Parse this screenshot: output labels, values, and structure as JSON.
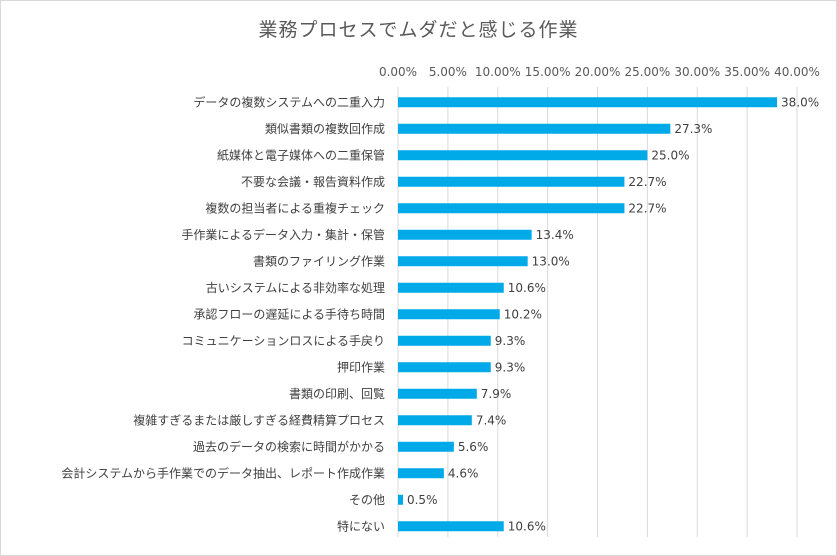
{
  "chart_data": {
    "type": "bar",
    "orientation": "horizontal",
    "title": "業務プロセスでムダだと感じる作業",
    "xlabel": "",
    "ylabel": "",
    "xlim": [
      0,
      40
    ],
    "x_ticks": [
      "0.00%",
      "5.00%",
      "10.00%",
      "15.00%",
      "20.00%",
      "25.00%",
      "30.00%",
      "35.00%",
      "40.00%"
    ],
    "x_axis_position": "top",
    "grid": true,
    "legend": "none",
    "bar_color": "#00a9e8",
    "categories": [
      "データの複数システムへの二重入力",
      "類似書類の複数回作成",
      "紙媒体と電子媒体への二重保管",
      "不要な会議・報告資料作成",
      "複数の担当者による重複チェック",
      "手作業によるデータ入力・集計・保管",
      "書類のファイリング作業",
      "古いシステムによる非効率な処理",
      "承認フローの遅延による手待ち時間",
      "コミュニケーションロスによる手戻り",
      "押印作業",
      "書類の印刷、回覧",
      "複雑すぎるまたは厳しすぎる経費精算プロセス",
      "過去のデータの検索に時間がかかる",
      "会計システムから手作業でのデータ抽出、レポート作成作業",
      "その他",
      "特にない"
    ],
    "values": [
      38.0,
      27.3,
      25.0,
      22.7,
      22.7,
      13.4,
      13.0,
      10.6,
      10.2,
      9.3,
      9.3,
      7.9,
      7.4,
      5.6,
      4.6,
      0.5,
      10.6
    ],
    "data_labels": [
      "38.0%",
      "27.3%",
      "25.0%",
      "22.7%",
      "22.7%",
      "13.4%",
      "13.0%",
      "10.6%",
      "10.2%",
      "9.3%",
      "9.3%",
      "7.9%",
      "7.4%",
      "5.6%",
      "4.6%",
      "0.5%",
      "10.6%"
    ]
  }
}
